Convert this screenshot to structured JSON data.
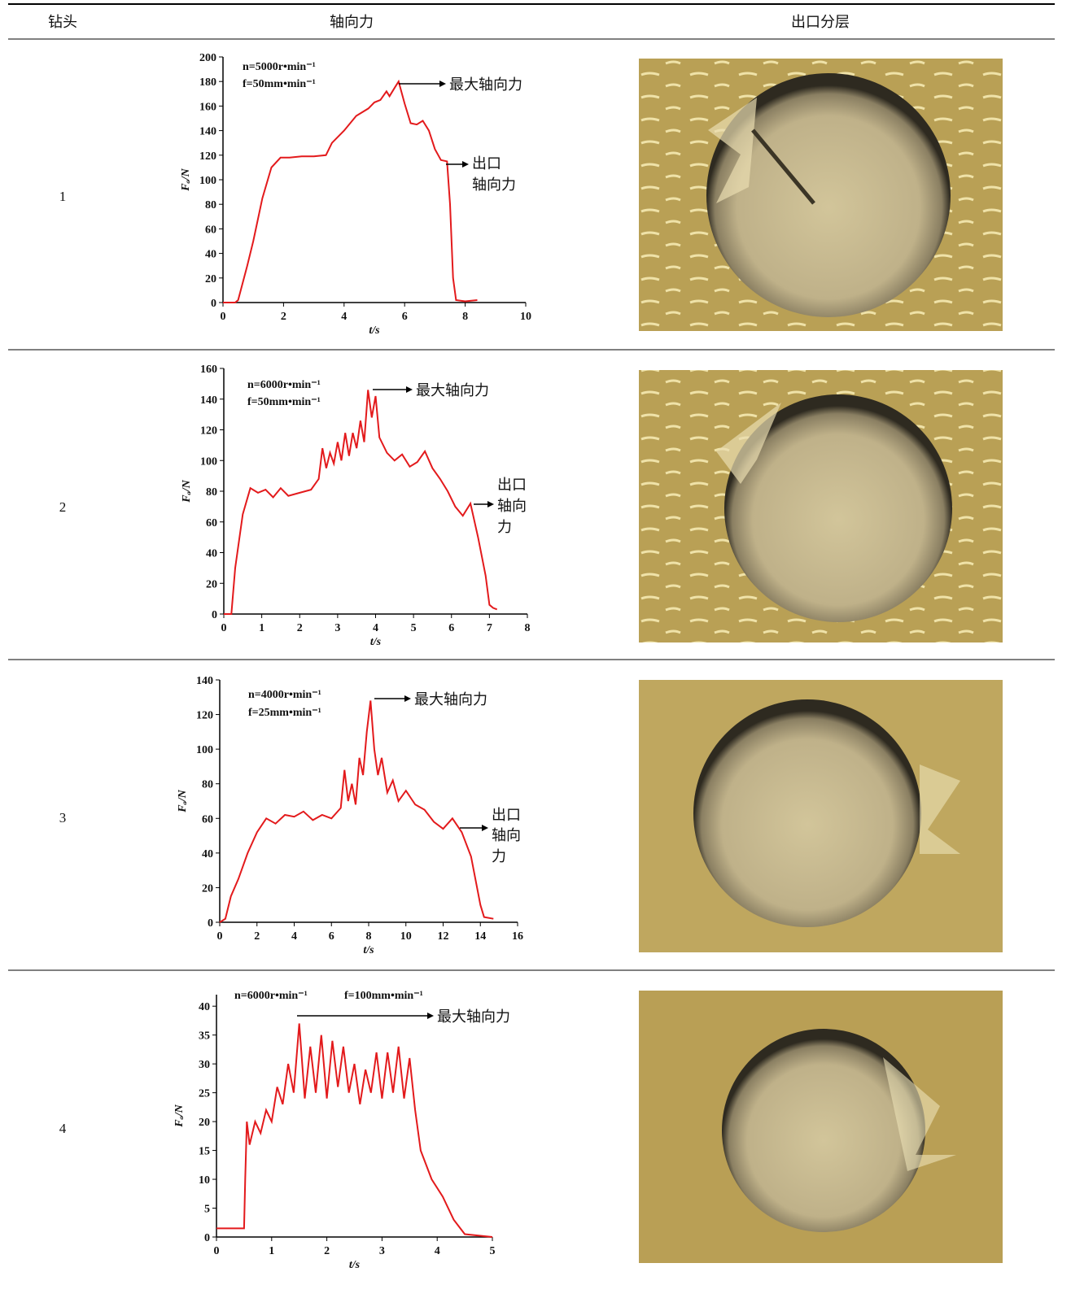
{
  "table": {
    "headers": [
      "钻头",
      "轴向力",
      "出口分层"
    ],
    "rows": [
      "1",
      "2",
      "3",
      "4"
    ]
  },
  "chart_data": [
    {
      "type": "line",
      "xlabel": "t/s",
      "ylabel": "Fₐ/N",
      "xlim": [
        0,
        10
      ],
      "ylim": [
        0,
        200
      ],
      "xticks": [
        0,
        2,
        4,
        6,
        8,
        10
      ],
      "yticks": [
        0,
        20,
        40,
        60,
        80,
        100,
        120,
        140,
        160,
        180,
        200
      ],
      "annotations": {
        "params": [
          "n=5000r•min⁻¹",
          "f=50mm•min⁻¹"
        ],
        "max_label": "最大轴向力",
        "exit_label": [
          "出口",
          "轴向力"
        ]
      },
      "series": [
        {
          "color": "#e31a1c",
          "x": [
            0,
            0.4,
            0.5,
            0.8,
            1.0,
            1.3,
            1.6,
            1.9,
            2.2,
            2.6,
            3.0,
            3.4,
            3.6,
            4.0,
            4.4,
            4.8,
            5.0,
            5.2,
            5.4,
            5.5,
            5.7,
            5.8,
            6.0,
            6.2,
            6.4,
            6.6,
            6.8,
            7.0,
            7.2,
            7.4,
            7.5,
            7.6,
            7.7,
            8.0,
            8.4
          ],
          "values": [
            0,
            0,
            2,
            30,
            50,
            85,
            110,
            118,
            118,
            119,
            119,
            120,
            130,
            140,
            152,
            158,
            163,
            165,
            172,
            168,
            176,
            180,
            162,
            146,
            145,
            148,
            140,
            125,
            116,
            115,
            80,
            20,
            2,
            1,
            2
          ]
        }
      ]
    },
    {
      "type": "line",
      "xlabel": "t/s",
      "ylabel": "Fₐ/N",
      "xlim": [
        0,
        8
      ],
      "ylim": [
        0,
        160
      ],
      "xticks": [
        0,
        1,
        2,
        3,
        4,
        5,
        6,
        7,
        8
      ],
      "yticks": [
        0,
        20,
        40,
        60,
        80,
        100,
        120,
        140,
        160
      ],
      "annotations": {
        "params": [
          "n=6000r•min⁻¹",
          "f=50mm•min⁻¹"
        ],
        "max_label": "最大轴向力",
        "exit_label": [
          "出口",
          "轴向",
          "力"
        ]
      },
      "series": [
        {
          "color": "#e31a1c",
          "x": [
            0,
            0.2,
            0.3,
            0.5,
            0.7,
            0.9,
            1.1,
            1.3,
            1.5,
            1.7,
            2.0,
            2.3,
            2.5,
            2.6,
            2.7,
            2.8,
            2.9,
            3.0,
            3.1,
            3.2,
            3.3,
            3.4,
            3.5,
            3.6,
            3.7,
            3.8,
            3.9,
            4.0,
            4.1,
            4.3,
            4.5,
            4.7,
            4.9,
            5.1,
            5.3,
            5.5,
            5.7,
            5.9,
            6.1,
            6.3,
            6.5,
            6.7,
            6.9,
            7.0,
            7.1,
            7.2
          ],
          "values": [
            0,
            0,
            30,
            65,
            82,
            79,
            81,
            76,
            82,
            77,
            79,
            81,
            88,
            108,
            95,
            105,
            98,
            112,
            100,
            118,
            103,
            118,
            108,
            126,
            112,
            146,
            128,
            142,
            115,
            105,
            100,
            104,
            96,
            99,
            106,
            95,
            88,
            80,
            70,
            64,
            72,
            50,
            25,
            6,
            4,
            3
          ]
        }
      ]
    },
    {
      "type": "line",
      "xlabel": "t/s",
      "ylabel": "Fₐ/N",
      "xlim": [
        0,
        16
      ],
      "ylim": [
        0,
        140
      ],
      "xticks": [
        0,
        2,
        4,
        6,
        8,
        10,
        12,
        14,
        16
      ],
      "yticks": [
        0,
        20,
        40,
        60,
        80,
        100,
        120,
        140
      ],
      "annotations": {
        "params": [
          "n=4000r•min⁻¹",
          "f=25mm•min⁻¹"
        ],
        "max_label": "最大轴向力",
        "exit_label": [
          "出口",
          "轴向",
          "力"
        ]
      },
      "series": [
        {
          "color": "#e31a1c",
          "x": [
            0,
            0.3,
            0.6,
            1.0,
            1.5,
            2.0,
            2.5,
            3,
            3.5,
            4,
            4.5,
            5,
            5.5,
            6,
            6.5,
            6.7,
            6.9,
            7.1,
            7.3,
            7.5,
            7.7,
            7.9,
            8.1,
            8.3,
            8.5,
            8.7,
            9.0,
            9.3,
            9.6,
            10,
            10.5,
            11,
            11.5,
            12,
            12.5,
            13,
            13.5,
            14,
            14.2,
            14.7
          ],
          "values": [
            0,
            2,
            15,
            25,
            40,
            52,
            60,
            57,
            62,
            61,
            64,
            59,
            62,
            60,
            66,
            88,
            70,
            80,
            68,
            95,
            85,
            110,
            128,
            100,
            85,
            95,
            75,
            82,
            70,
            76,
            68,
            65,
            58,
            54,
            60,
            52,
            38,
            10,
            3,
            2
          ]
        }
      ]
    },
    {
      "type": "line",
      "xlabel": "t/s",
      "ylabel": "Fₐ/N",
      "xlim": [
        0,
        5
      ],
      "ylim": [
        0,
        42
      ],
      "xticks": [
        0,
        1,
        2,
        3,
        4,
        5
      ],
      "yticks": [
        0,
        5,
        10,
        15,
        20,
        25,
        30,
        35,
        40
      ],
      "annotations": {
        "params": [
          "n=6000r•min⁻¹",
          "f=100mm•min⁻¹"
        ],
        "max_label": "最大轴向力"
      },
      "series": [
        {
          "color": "#e31a1c",
          "x": [
            0,
            0.5,
            0.52,
            0.55,
            0.6,
            0.7,
            0.8,
            0.9,
            1.0,
            1.1,
            1.2,
            1.3,
            1.4,
            1.5,
            1.6,
            1.7,
            1.8,
            1.9,
            2.0,
            2.1,
            2.2,
            2.3,
            2.4,
            2.5,
            2.6,
            2.7,
            2.8,
            2.9,
            3.0,
            3.1,
            3.2,
            3.3,
            3.4,
            3.5,
            3.6,
            3.7,
            3.9,
            4.1,
            4.3,
            4.5,
            5.0
          ],
          "values": [
            1.5,
            1.5,
            10,
            20,
            16,
            20,
            18,
            22,
            20,
            26,
            23,
            30,
            25,
            37,
            24,
            33,
            25,
            35,
            24,
            34,
            26,
            33,
            25,
            30,
            23,
            29,
            25,
            32,
            24,
            32,
            25,
            33,
            24,
            31,
            22,
            15,
            10,
            7,
            3,
            0.5,
            0
          ]
        }
      ]
    }
  ]
}
